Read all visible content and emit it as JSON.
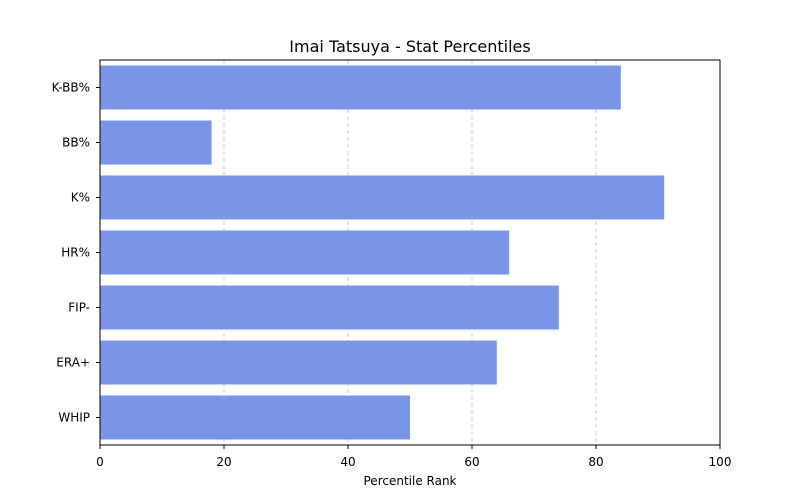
{
  "chart_data": {
    "type": "bar",
    "orientation": "horizontal",
    "title": "Imai Tatsuya - Stat Percentiles",
    "xlabel": "Percentile Rank",
    "ylabel": "",
    "categories": [
      "K-BB%",
      "BB%",
      "K%",
      "HR%",
      "FIP-",
      "ERA+",
      "WHIP"
    ],
    "values": [
      84,
      18,
      91,
      66,
      74,
      64,
      50
    ],
    "xlim": [
      0,
      100
    ],
    "xticks": [
      0,
      20,
      40,
      60,
      80,
      100
    ],
    "grid": "x-dashed",
    "legend": "none",
    "bar_color": "#7895e8"
  }
}
